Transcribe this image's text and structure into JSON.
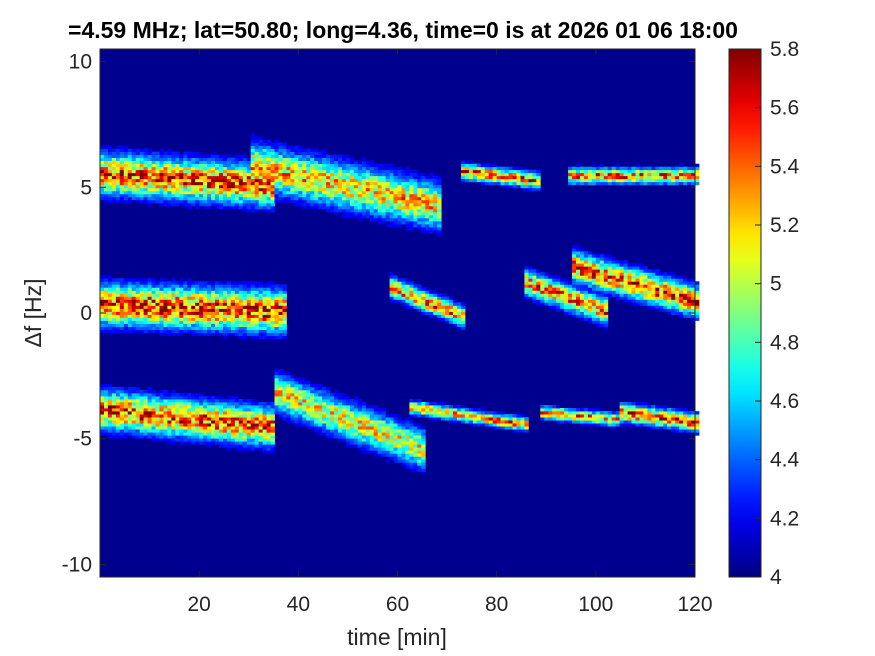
{
  "chart_data": {
    "type": "heatmap",
    "title": "=4.59 MHz;  lat=50.80; long=4.36, time=0 is at 2026 01 06 18:00",
    "xlabel": "time [min]",
    "ylabel": "Δf [Hz]",
    "xlim": [
      0,
      120
    ],
    "ylim": [
      -10.5,
      10.5
    ],
    "xticks": [
      20,
      40,
      60,
      80,
      100,
      120
    ],
    "yticks": [
      -10,
      -5,
      0,
      5,
      10
    ],
    "xtick_labels": [
      "20",
      "40",
      "60",
      "80",
      "100",
      "120"
    ],
    "ytick_labels": [
      "-10",
      "-5",
      "0",
      "5",
      "10"
    ],
    "colorbar": {
      "colormap": "jet",
      "range": [
        4,
        5.8
      ],
      "ticks": [
        4,
        4.2,
        4.4,
        4.6,
        4.8,
        5,
        5.2,
        5.4,
        5.6,
        5.8
      ],
      "tick_labels": [
        "4",
        "4.2",
        "4.4",
        "4.6",
        "4.8",
        "5",
        "5.2",
        "5.4",
        "5.6",
        "5.8"
      ]
    },
    "background_level": 4.05,
    "features": [
      {
        "t_start": 0,
        "t_end": 35,
        "f_center": 5.5,
        "f_end": 5.0,
        "width": 1.6,
        "intensity": 5.7
      },
      {
        "t_start": 30,
        "t_end": 68,
        "f_center": 5.8,
        "f_end": 4.2,
        "width": 1.8,
        "intensity": 5.4
      },
      {
        "t_start": 72,
        "t_end": 88,
        "f_center": 5.6,
        "f_end": 5.2,
        "width": 0.6,
        "intensity": 5.7
      },
      {
        "t_start": 94,
        "t_end": 120,
        "f_center": 5.4,
        "f_end": 5.4,
        "width": 0.6,
        "intensity": 5.6
      },
      {
        "t_start": 0,
        "t_end": 37,
        "f_center": 0.3,
        "f_end": 0.0,
        "width": 1.6,
        "intensity": 5.8
      },
      {
        "t_start": 58,
        "t_end": 73,
        "f_center": 1.0,
        "f_end": -0.2,
        "width": 0.8,
        "intensity": 5.6
      },
      {
        "t_start": 85,
        "t_end": 102,
        "f_center": 1.2,
        "f_end": 0.0,
        "width": 1.0,
        "intensity": 5.6
      },
      {
        "t_start": 95,
        "t_end": 120,
        "f_center": 1.8,
        "f_end": 0.4,
        "width": 1.2,
        "intensity": 5.7
      },
      {
        "t_start": 0,
        "t_end": 35,
        "f_center": -3.9,
        "f_end": -4.6,
        "width": 1.5,
        "intensity": 5.7
      },
      {
        "t_start": 35,
        "t_end": 65,
        "f_center": -3.2,
        "f_end": -5.5,
        "width": 1.5,
        "intensity": 5.3
      },
      {
        "t_start": 62,
        "t_end": 86,
        "f_center": -3.8,
        "f_end": -4.5,
        "width": 0.5,
        "intensity": 5.6
      },
      {
        "t_start": 88,
        "t_end": 104,
        "f_center": -4.0,
        "f_end": -4.3,
        "width": 0.5,
        "intensity": 5.5
      },
      {
        "t_start": 104,
        "t_end": 120,
        "f_center": -4.0,
        "f_end": -4.4,
        "width": 0.7,
        "intensity": 5.7
      }
    ]
  }
}
